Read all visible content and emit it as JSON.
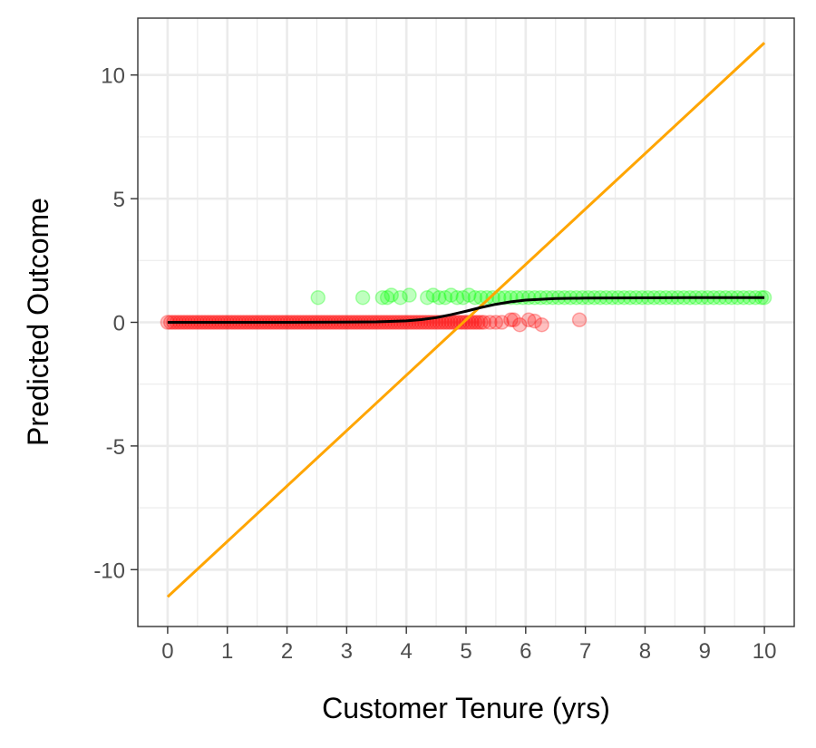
{
  "chart_data": {
    "type": "scatter",
    "title": "",
    "xlabel": "Customer Tenure (yrs)",
    "ylabel": "Predicted Outcome",
    "xlim": [
      -0.5,
      10.5
    ],
    "ylim": [
      -12.3,
      12.3
    ],
    "x_ticks": [
      0,
      1,
      2,
      3,
      4,
      5,
      6,
      7,
      8,
      9,
      10
    ],
    "x_tick_labels": [
      "0",
      "1",
      "2",
      "3",
      "4",
      "5",
      "6",
      "7",
      "8",
      "9",
      "10"
    ],
    "y_ticks": [
      -10,
      -5,
      0,
      5,
      10
    ],
    "y_tick_labels": [
      "-10",
      "-5",
      "0",
      "5",
      "10"
    ],
    "grid": true,
    "legend": "none",
    "series": [
      {
        "kind": "points",
        "color": "#ff0000",
        "opacity": 0.25,
        "points": [
          [
            0.0,
            0
          ],
          [
            0.05,
            0
          ],
          [
            0.1,
            0
          ],
          [
            0.15,
            0
          ],
          [
            0.2,
            0
          ],
          [
            0.25,
            0
          ],
          [
            0.3,
            0
          ],
          [
            0.35,
            0
          ],
          [
            0.4,
            0
          ],
          [
            0.45,
            0
          ],
          [
            0.5,
            0
          ],
          [
            0.55,
            0
          ],
          [
            0.6,
            0
          ],
          [
            0.65,
            0
          ],
          [
            0.7,
            0
          ],
          [
            0.75,
            0
          ],
          [
            0.8,
            0
          ],
          [
            0.85,
            0
          ],
          [
            0.9,
            0
          ],
          [
            0.95,
            0
          ],
          [
            1.0,
            0
          ],
          [
            1.05,
            0
          ],
          [
            1.1,
            0
          ],
          [
            1.15,
            0
          ],
          [
            1.2,
            0
          ],
          [
            1.25,
            0
          ],
          [
            1.3,
            0
          ],
          [
            1.35,
            0
          ],
          [
            1.4,
            0
          ],
          [
            1.45,
            0
          ],
          [
            1.5,
            0
          ],
          [
            1.55,
            0
          ],
          [
            1.6,
            0
          ],
          [
            1.65,
            0
          ],
          [
            1.7,
            0
          ],
          [
            1.75,
            0
          ],
          [
            1.8,
            0
          ],
          [
            1.85,
            0
          ],
          [
            1.9,
            0
          ],
          [
            1.95,
            0
          ],
          [
            2.0,
            0
          ],
          [
            2.05,
            0
          ],
          [
            2.1,
            0
          ],
          [
            2.15,
            0
          ],
          [
            2.2,
            0
          ],
          [
            2.25,
            0
          ],
          [
            2.3,
            0
          ],
          [
            2.35,
            0
          ],
          [
            2.4,
            0
          ],
          [
            2.45,
            0
          ],
          [
            2.5,
            0
          ],
          [
            2.55,
            0
          ],
          [
            2.6,
            0
          ],
          [
            2.65,
            0
          ],
          [
            2.7,
            0
          ],
          [
            2.75,
            0
          ],
          [
            2.8,
            0
          ],
          [
            2.85,
            0
          ],
          [
            2.9,
            0
          ],
          [
            2.95,
            0
          ],
          [
            3.0,
            0
          ],
          [
            3.05,
            0
          ],
          [
            3.1,
            0
          ],
          [
            3.15,
            0
          ],
          [
            3.2,
            0
          ],
          [
            3.25,
            0
          ],
          [
            3.3,
            0
          ],
          [
            3.35,
            0
          ],
          [
            3.4,
            0
          ],
          [
            3.45,
            0
          ],
          [
            3.5,
            0
          ],
          [
            3.55,
            0
          ],
          [
            3.6,
            0
          ],
          [
            3.65,
            0
          ],
          [
            3.7,
            0
          ],
          [
            3.75,
            0
          ],
          [
            3.8,
            0
          ],
          [
            3.85,
            0
          ],
          [
            3.9,
            0
          ],
          [
            3.95,
            0
          ],
          [
            4.0,
            0
          ],
          [
            4.05,
            0
          ],
          [
            4.1,
            0
          ],
          [
            4.15,
            0
          ],
          [
            4.2,
            0
          ],
          [
            4.25,
            0
          ],
          [
            4.3,
            0
          ],
          [
            4.35,
            0
          ],
          [
            4.4,
            0
          ],
          [
            4.45,
            0
          ],
          [
            4.5,
            0
          ],
          [
            4.55,
            0
          ],
          [
            4.6,
            0
          ],
          [
            4.65,
            0
          ],
          [
            4.7,
            0
          ],
          [
            4.75,
            0
          ],
          [
            4.8,
            0
          ],
          [
            4.85,
            0
          ],
          [
            4.9,
            0
          ],
          [
            4.95,
            0
          ],
          [
            5.0,
            0
          ],
          [
            5.05,
            0
          ],
          [
            5.1,
            0
          ],
          [
            5.15,
            0
          ],
          [
            5.2,
            0
          ],
          [
            5.25,
            0
          ],
          [
            5.3,
            0
          ],
          [
            5.4,
            0
          ],
          [
            5.5,
            0
          ],
          [
            5.6,
            0
          ],
          [
            5.75,
            0.1
          ],
          [
            5.8,
            0.1
          ],
          [
            5.9,
            -0.1
          ],
          [
            6.05,
            0.1
          ],
          [
            6.15,
            0.05
          ],
          [
            6.27,
            -0.1
          ],
          [
            6.9,
            0.1
          ]
        ]
      },
      {
        "kind": "points",
        "color": "#00ff00",
        "opacity": 0.25,
        "points": [
          [
            2.52,
            1
          ],
          [
            3.27,
            1
          ],
          [
            3.6,
            1
          ],
          [
            3.68,
            1
          ],
          [
            3.75,
            1.1
          ],
          [
            3.9,
            1
          ],
          [
            4.05,
            1.1
          ],
          [
            4.35,
            1
          ],
          [
            4.45,
            1.1
          ],
          [
            4.55,
            1
          ],
          [
            4.65,
            1
          ],
          [
            4.75,
            1.1
          ],
          [
            4.85,
            1
          ],
          [
            4.95,
            1
          ],
          [
            5.05,
            1.1
          ],
          [
            5.15,
            1
          ],
          [
            5.25,
            1
          ],
          [
            5.35,
            1
          ],
          [
            5.45,
            1
          ],
          [
            5.55,
            1
          ],
          [
            5.65,
            1
          ],
          [
            5.75,
            1
          ],
          [
            5.85,
            1
          ],
          [
            5.95,
            1
          ],
          [
            6.05,
            1
          ],
          [
            6.15,
            1
          ],
          [
            6.25,
            1
          ],
          [
            6.35,
            1
          ],
          [
            6.45,
            1
          ],
          [
            6.55,
            1
          ],
          [
            6.65,
            1
          ],
          [
            6.75,
            1
          ],
          [
            6.85,
            1
          ],
          [
            6.95,
            1
          ],
          [
            7.05,
            1
          ],
          [
            7.15,
            1
          ],
          [
            7.25,
            1
          ],
          [
            7.35,
            1
          ],
          [
            7.45,
            1
          ],
          [
            7.55,
            1
          ],
          [
            7.65,
            1
          ],
          [
            7.75,
            1
          ],
          [
            7.85,
            1
          ],
          [
            7.95,
            1
          ],
          [
            8.05,
            1
          ],
          [
            8.15,
            1
          ],
          [
            8.25,
            1
          ],
          [
            8.35,
            1
          ],
          [
            8.45,
            1
          ],
          [
            8.55,
            1
          ],
          [
            8.65,
            1
          ],
          [
            8.75,
            1
          ],
          [
            8.85,
            1
          ],
          [
            8.95,
            1
          ],
          [
            9.05,
            1
          ],
          [
            9.15,
            1
          ],
          [
            9.25,
            1
          ],
          [
            9.35,
            1
          ],
          [
            9.45,
            1
          ],
          [
            9.55,
            1
          ],
          [
            9.65,
            1
          ],
          [
            9.75,
            1
          ],
          [
            9.85,
            1
          ],
          [
            9.95,
            1
          ],
          [
            10.0,
            1
          ]
        ]
      },
      {
        "kind": "line",
        "color": "#ffa500",
        "x": [
          0,
          10
        ],
        "y": [
          -11.1,
          11.3
        ]
      },
      {
        "kind": "line",
        "color": "#000000",
        "x": [
          0,
          1,
          2,
          3,
          3.5,
          4,
          4.25,
          4.5,
          4.75,
          5,
          5.25,
          5.5,
          5.75,
          6,
          6.5,
          7,
          8,
          9,
          10
        ],
        "y": [
          0,
          0,
          0,
          0.01,
          0.02,
          0.06,
          0.11,
          0.19,
          0.31,
          0.45,
          0.6,
          0.73,
          0.83,
          0.9,
          0.96,
          0.98,
          0.99,
          1,
          1
        ]
      }
    ]
  }
}
